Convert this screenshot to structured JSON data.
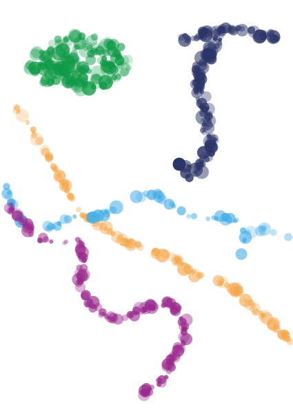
{
  "image": {
    "description_visible_text": "",
    "background": "#ffffff"
  },
  "trails": [
    {
      "name": "green-cluster",
      "color": "#0f9a48"
    },
    {
      "name": "navy-trail",
      "color": "#2b3568"
    },
    {
      "name": "orange-trail",
      "color": "#f4a74a"
    },
    {
      "name": "blue-trail",
      "color": "#47aee6"
    },
    {
      "name": "purple-trail",
      "color": "#9b2a8e"
    }
  ]
}
